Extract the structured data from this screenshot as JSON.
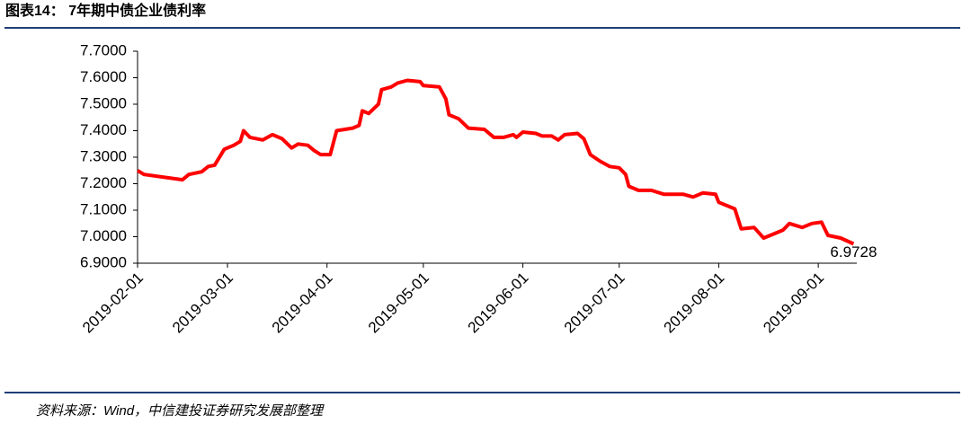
{
  "chart_data": {
    "type": "line",
    "title": "图表14：  7年期中债企业债利率",
    "source": "资料来源：Wind，中信建投证券研究发展部整理",
    "x": [
      "2019-02-01",
      "2019-02-03",
      "2019-02-15",
      "2019-02-17",
      "2019-02-21",
      "2019-02-23",
      "2019-02-25",
      "2019-02-27",
      "2019-02-28",
      "2019-03-03",
      "2019-03-05",
      "2019-03-06",
      "2019-03-08",
      "2019-03-12",
      "2019-03-15",
      "2019-03-18",
      "2019-03-21",
      "2019-03-23",
      "2019-03-26",
      "2019-03-28",
      "2019-03-30",
      "2019-04-02",
      "2019-04-04",
      "2019-04-09",
      "2019-04-11",
      "2019-04-12",
      "2019-04-14",
      "2019-04-17",
      "2019-04-18",
      "2019-04-21",
      "2019-04-23",
      "2019-04-26",
      "2019-04-30",
      "2019-05-01",
      "2019-05-06",
      "2019-05-08",
      "2019-05-09",
      "2019-05-12",
      "2019-05-15",
      "2019-05-20",
      "2019-05-23",
      "2019-05-26",
      "2019-05-29",
      "2019-05-30",
      "2019-06-01",
      "2019-06-05",
      "2019-06-07",
      "2019-06-10",
      "2019-06-12",
      "2019-06-14",
      "2019-06-18",
      "2019-06-20",
      "2019-06-22",
      "2019-06-25",
      "2019-06-28",
      "2019-07-01",
      "2019-07-03",
      "2019-07-04",
      "2019-07-07",
      "2019-07-11",
      "2019-07-15",
      "2019-07-21",
      "2019-07-24",
      "2019-07-27",
      "2019-07-31",
      "2019-08-01",
      "2019-08-06",
      "2019-08-08",
      "2019-08-12",
      "2019-08-15",
      "2019-08-18",
      "2019-08-21",
      "2019-08-23",
      "2019-08-27",
      "2019-08-30",
      "2019-09-02",
      "2019-09-04",
      "2019-09-08",
      "2019-09-12"
    ],
    "series": [
      {
        "color": "#ff0000",
        "values": [
          7.25,
          7.235,
          7.215,
          7.235,
          7.245,
          7.265,
          7.27,
          7.31,
          7.33,
          7.345,
          7.36,
          7.4,
          7.375,
          7.365,
          7.385,
          7.37,
          7.335,
          7.35,
          7.345,
          7.325,
          7.31,
          7.31,
          7.4,
          7.41,
          7.42,
          7.475,
          7.465,
          7.5,
          7.555,
          7.565,
          7.58,
          7.59,
          7.585,
          7.57,
          7.565,
          7.52,
          7.46,
          7.445,
          7.41,
          7.405,
          7.375,
          7.375,
          7.385,
          7.375,
          7.395,
          7.39,
          7.38,
          7.38,
          7.365,
          7.385,
          7.39,
          7.37,
          7.31,
          7.285,
          7.265,
          7.26,
          7.235,
          7.19,
          7.175,
          7.175,
          7.16,
          7.16,
          7.15,
          7.165,
          7.16,
          7.13,
          7.105,
          7.03,
          7.035,
          6.995,
          7.01,
          7.025,
          7.05,
          7.035,
          7.05,
          7.055,
          7.005,
          6.995,
          6.9728
        ]
      }
    ],
    "xlim": [
      "2019-02-01",
      "2019-09-13"
    ],
    "xticks": [
      "2019-02-01",
      "2019-03-01",
      "2019-04-01",
      "2019-05-01",
      "2019-06-01",
      "2019-07-01",
      "2019-08-01",
      "2019-09-01"
    ],
    "ylim": [
      6.9,
      7.7
    ],
    "yticks": [
      {
        "value": 6.9,
        "label": "6.9000"
      },
      {
        "value": 7.0,
        "label": "7.0000"
      },
      {
        "value": 7.1,
        "label": "7.1000"
      },
      {
        "value": 7.2,
        "label": "7.2000"
      },
      {
        "value": 7.3,
        "label": "7.3000"
      },
      {
        "value": 7.4,
        "label": "7.4000"
      },
      {
        "value": 7.5,
        "label": "7.5000"
      },
      {
        "value": 7.6,
        "label": "7.6000"
      },
      {
        "value": 7.7,
        "label": "7.7000"
      }
    ]
  }
}
